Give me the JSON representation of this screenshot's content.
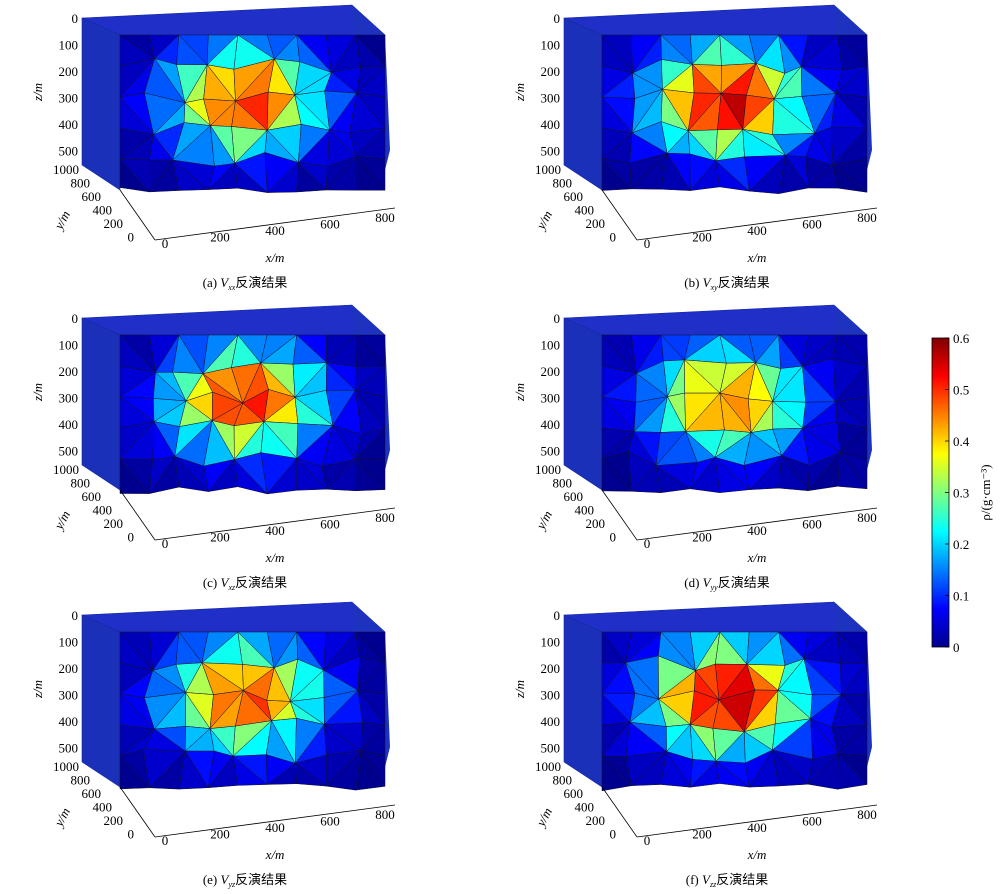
{
  "chart_data": [
    {
      "panel": "a",
      "type": "heatmap",
      "caption_prefix": "(a)",
      "component": "V",
      "component_sub": "xx",
      "caption_suffix": "反演结果",
      "peak": 0.52,
      "xlabel": "x/m",
      "ylabel": "y/m",
      "zlabel": "z/m",
      "x_ticks": [
        "0",
        "200",
        "400",
        "600",
        "800"
      ],
      "y_ticks": [
        "1000",
        "800",
        "600",
        "400",
        "200",
        "0"
      ],
      "z_ticks": [
        "0",
        "100",
        "200",
        "300",
        "400",
        "500"
      ]
    },
    {
      "panel": "b",
      "type": "heatmap",
      "caption_prefix": "(b)",
      "component": "V",
      "component_sub": "xy",
      "caption_suffix": "反演结果",
      "peak": 0.58,
      "xlabel": "x/m",
      "ylabel": "y/m",
      "zlabel": "z/m",
      "x_ticks": [
        "0",
        "200",
        "400",
        "600",
        "800"
      ],
      "y_ticks": [
        "1000",
        "800",
        "600",
        "400",
        "200",
        "0"
      ],
      "z_ticks": [
        "0",
        "100",
        "200",
        "300",
        "400",
        "500"
      ]
    },
    {
      "panel": "c",
      "type": "heatmap",
      "caption_prefix": "(c)",
      "component": "V",
      "component_sub": "xz",
      "caption_suffix": "反演结果",
      "peak": 0.54,
      "xlabel": "x/m",
      "ylabel": "y/m",
      "zlabel": "z/m",
      "x_ticks": [
        "0",
        "200",
        "400",
        "600",
        "800"
      ],
      "y_ticks": [
        "1000",
        "800",
        "600",
        "400",
        "200",
        "0"
      ],
      "z_ticks": [
        "0",
        "100",
        "200",
        "300",
        "400",
        "500"
      ]
    },
    {
      "panel": "d",
      "type": "heatmap",
      "caption_prefix": "(d)",
      "component": "V",
      "component_sub": "yy",
      "caption_suffix": "反演结果",
      "peak": 0.48,
      "xlabel": "x/m",
      "ylabel": "y/m",
      "zlabel": "z/m",
      "x_ticks": [
        "0",
        "200",
        "400",
        "600",
        "800"
      ],
      "y_ticks": [
        "1000",
        "800",
        "600",
        "400",
        "200",
        "0"
      ],
      "z_ticks": [
        "0",
        "100",
        "200",
        "300",
        "400",
        "500"
      ]
    },
    {
      "panel": "e",
      "type": "heatmap",
      "caption_prefix": "(e)",
      "component": "V",
      "component_sub": "yz",
      "caption_suffix": "反演结果",
      "peak": 0.52,
      "xlabel": "x/m",
      "ylabel": "y/m",
      "zlabel": "z/m",
      "x_ticks": [
        "0",
        "200",
        "400",
        "600",
        "800"
      ],
      "y_ticks": [
        "1000",
        "800",
        "600",
        "400",
        "200",
        "0"
      ],
      "z_ticks": [
        "0",
        "100",
        "200",
        "300",
        "400",
        "500"
      ]
    },
    {
      "panel": "f",
      "type": "heatmap",
      "caption_prefix": "(f)",
      "component": "V",
      "component_sub": "zz",
      "caption_suffix": "反演结果",
      "peak": 0.6,
      "xlabel": "x/m",
      "ylabel": "y/m",
      "zlabel": "z/m",
      "x_ticks": [
        "0",
        "200",
        "400",
        "600",
        "800"
      ],
      "y_ticks": [
        "1000",
        "800",
        "600",
        "400",
        "200",
        "0"
      ],
      "z_ticks": [
        "0",
        "100",
        "200",
        "300",
        "400",
        "500"
      ]
    }
  ],
  "colorbar": {
    "label": "ρ/(g·cm⁻³)",
    "ticks": [
      "0",
      "0.1",
      "0.2",
      "0.3",
      "0.4",
      "0.5",
      "0.6"
    ],
    "range": [
      0,
      0.6
    ],
    "colormap": [
      "#00008f",
      "#0000ff",
      "#0080ff",
      "#00ffff",
      "#80ff80",
      "#ffff00",
      "#ff8000",
      "#ff0000",
      "#800000"
    ]
  }
}
